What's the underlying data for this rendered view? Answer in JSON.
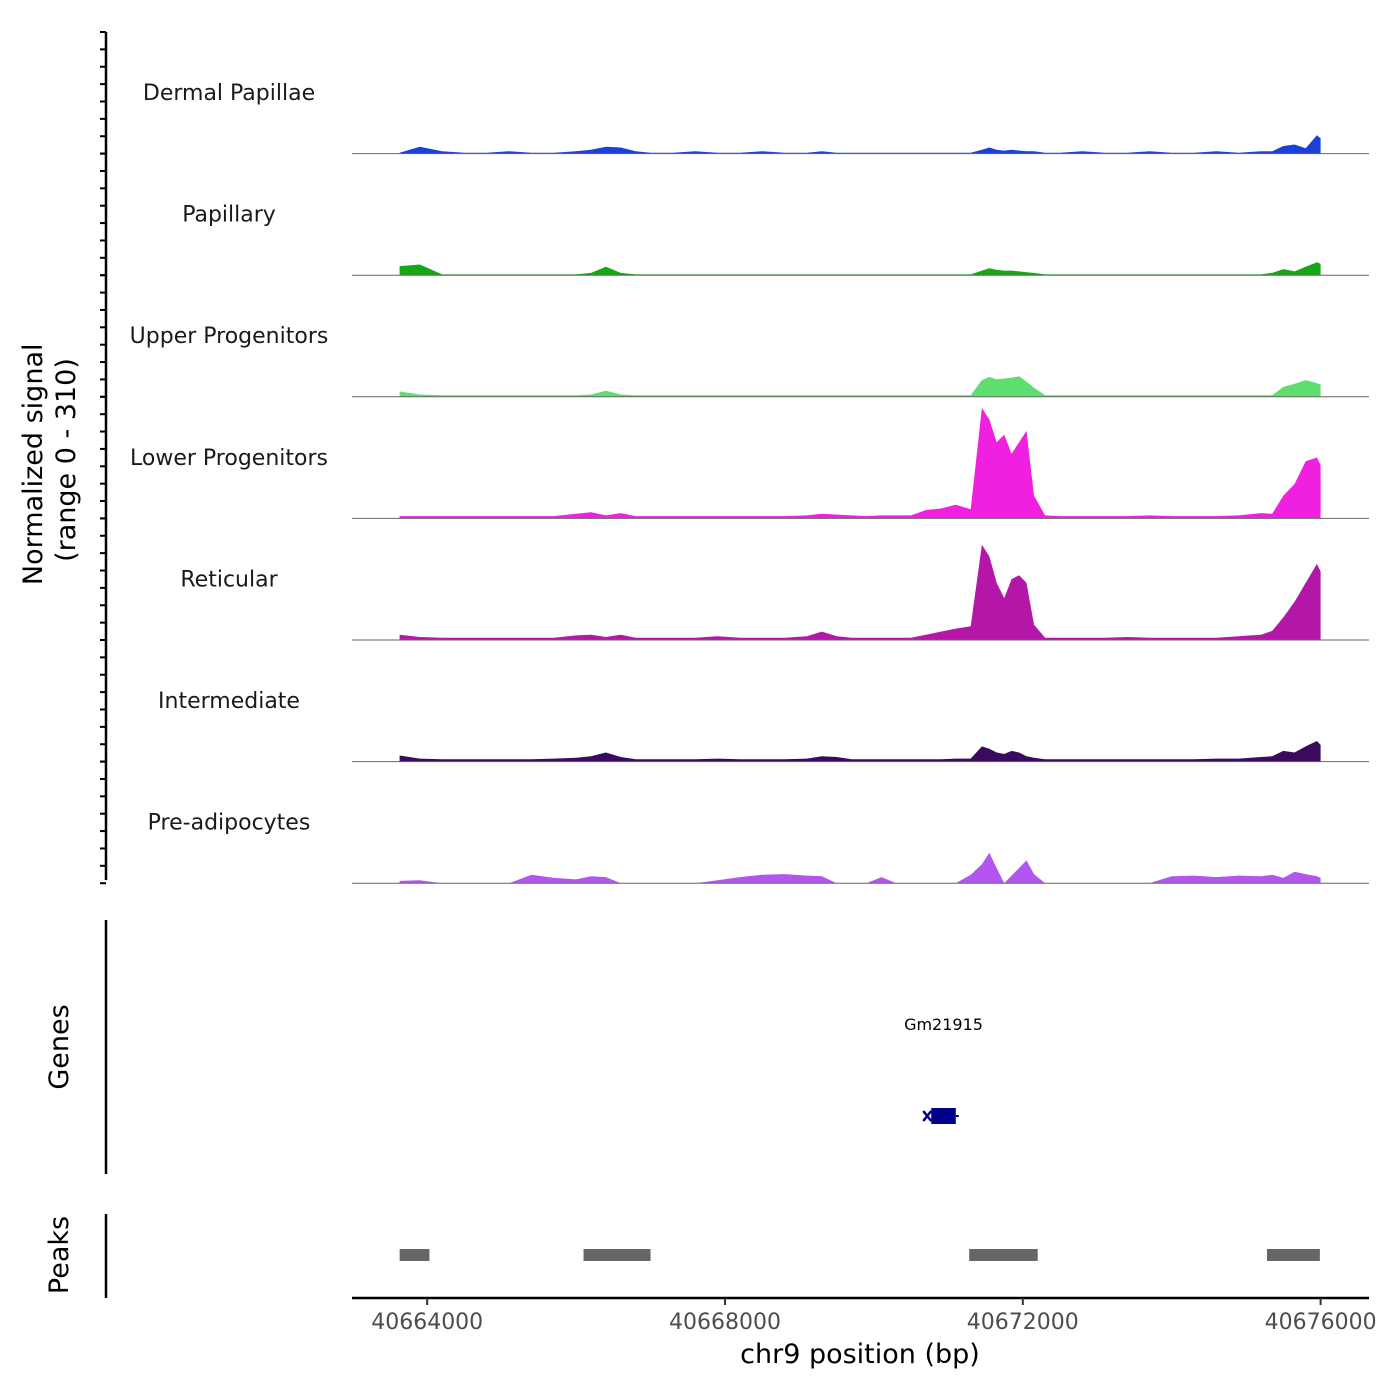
{
  "chart_data": {
    "type": "area",
    "chromosome": "chr9",
    "xlabel": "chr9 position (bp)",
    "ylabel_line1": "Normalized signal",
    "ylabel_line2": "(range 0 - 310)",
    "ylim": [
      0,
      310
    ],
    "x_range": [
      40662990,
      40676650
    ],
    "x_ticks": [
      40664000,
      40668000,
      40672000,
      40676000
    ],
    "x_tick_labels": [
      "40664000",
      "40668000",
      "40672000",
      "40676000"
    ],
    "signal_x": [
      40663630,
      40663900,
      40664200,
      40664500,
      40664800,
      40665100,
      40665400,
      40665700,
      40666000,
      40666200,
      40666400,
      40666600,
      40666800,
      40667000,
      40667300,
      40667600,
      40667900,
      40668200,
      40668500,
      40668800,
      40669100,
      40669300,
      40669500,
      40669700,
      40669900,
      40670100,
      40670300,
      40670500,
      40670700,
      40670900,
      40671100,
      40671300,
      40671450,
      40671550,
      40671650,
      40671750,
      40671850,
      40671950,
      40672050,
      40672150,
      40672300,
      40672500,
      40672800,
      40673100,
      40673400,
      40673700,
      40674000,
      40674300,
      40674600,
      40674900,
      40675200,
      40675350,
      40675500,
      40675650,
      40675800,
      40675950,
      40676000
    ],
    "series": [
      {
        "name": "Dermal Papillae",
        "color": "#1c3fd9",
        "values": [
          2,
          18,
          6,
          2,
          2,
          6,
          2,
          2,
          6,
          10,
          18,
          16,
          6,
          2,
          2,
          6,
          2,
          2,
          6,
          2,
          2,
          6,
          2,
          2,
          2,
          2,
          2,
          2,
          2,
          2,
          2,
          2,
          10,
          16,
          10,
          8,
          10,
          8,
          6,
          6,
          2,
          2,
          6,
          2,
          2,
          6,
          2,
          2,
          6,
          2,
          6,
          6,
          20,
          24,
          14,
          48,
          40
        ]
      },
      {
        "name": "Papillary",
        "color": "#14a814",
        "values": [
          24,
          28,
          2,
          2,
          2,
          2,
          2,
          2,
          2,
          6,
          22,
          6,
          2,
          2,
          2,
          2,
          2,
          2,
          2,
          2,
          2,
          2,
          2,
          2,
          2,
          2,
          2,
          2,
          2,
          2,
          2,
          2,
          12,
          18,
          14,
          12,
          12,
          10,
          8,
          6,
          2,
          2,
          2,
          2,
          2,
          2,
          2,
          2,
          2,
          2,
          2,
          6,
          16,
          10,
          22,
          34,
          30
        ]
      },
      {
        "name": "Upper Progenitors",
        "color": "#5ede6e",
        "values": [
          14,
          6,
          4,
          4,
          4,
          4,
          4,
          4,
          4,
          6,
          16,
          6,
          4,
          4,
          4,
          4,
          4,
          4,
          4,
          4,
          4,
          4,
          4,
          4,
          4,
          4,
          4,
          4,
          4,
          4,
          4,
          4,
          44,
          52,
          46,
          48,
          50,
          54,
          40,
          24,
          4,
          4,
          4,
          4,
          4,
          4,
          4,
          4,
          4,
          4,
          4,
          4,
          26,
          34,
          44,
          36,
          32
        ]
      },
      {
        "name": "Lower Progenitors",
        "color": "#f020e0",
        "values": [
          6,
          6,
          6,
          6,
          6,
          6,
          6,
          6,
          12,
          16,
          8,
          14,
          6,
          6,
          6,
          6,
          6,
          6,
          6,
          6,
          8,
          12,
          10,
          8,
          6,
          8,
          8,
          8,
          22,
          26,
          36,
          24,
          290,
          260,
          200,
          220,
          170,
          200,
          230,
          60,
          8,
          6,
          6,
          6,
          6,
          8,
          6,
          6,
          6,
          8,
          14,
          12,
          60,
          90,
          150,
          160,
          140
        ]
      },
      {
        "name": "Reticular",
        "color": "#b416a8",
        "values": [
          14,
          8,
          6,
          6,
          6,
          6,
          6,
          6,
          12,
          14,
          8,
          14,
          6,
          6,
          6,
          6,
          10,
          6,
          6,
          6,
          10,
          22,
          10,
          6,
          6,
          6,
          6,
          6,
          14,
          22,
          30,
          36,
          250,
          220,
          150,
          110,
          160,
          170,
          150,
          40,
          6,
          6,
          6,
          6,
          8,
          6,
          6,
          6,
          6,
          10,
          14,
          24,
          60,
          100,
          150,
          200,
          180
        ]
      },
      {
        "name": "Intermediate",
        "color": "#3a0a5c",
        "values": [
          16,
          8,
          6,
          6,
          6,
          6,
          6,
          8,
          10,
          14,
          24,
          12,
          6,
          6,
          6,
          6,
          8,
          6,
          6,
          6,
          8,
          14,
          12,
          6,
          6,
          6,
          6,
          6,
          6,
          6,
          8,
          8,
          40,
          34,
          24,
          20,
          28,
          24,
          14,
          10,
          6,
          6,
          6,
          6,
          6,
          6,
          6,
          6,
          8,
          8,
          12,
          14,
          28,
          24,
          40,
          54,
          44
        ]
      },
      {
        "name": "Pre-adipocytes",
        "color": "#b355f0",
        "values": [
          6,
          8,
          0,
          0,
          0,
          0,
          22,
          14,
          10,
          18,
          16,
          0,
          0,
          0,
          0,
          0,
          8,
          16,
          22,
          24,
          20,
          18,
          0,
          0,
          0,
          16,
          0,
          0,
          0,
          0,
          0,
          22,
          50,
          80,
          40,
          0,
          20,
          40,
          60,
          24,
          0,
          0,
          0,
          0,
          0,
          0,
          18,
          20,
          16,
          20,
          18,
          22,
          14,
          30,
          24,
          18,
          14
        ]
      }
    ],
    "genes": [
      {
        "name": "Gm21915",
        "start": 40670770,
        "end": 40671100,
        "strand": "-",
        "color": "#00008b"
      }
    ],
    "peaks": [
      {
        "start": 40663630,
        "end": 40664030
      },
      {
        "start": 40666100,
        "end": 40667000
      },
      {
        "start": 40671280,
        "end": 40672200
      },
      {
        "start": 40675280,
        "end": 40675990
      }
    ],
    "panel_titles": {
      "genes": "Genes",
      "peaks": "Peaks"
    }
  }
}
